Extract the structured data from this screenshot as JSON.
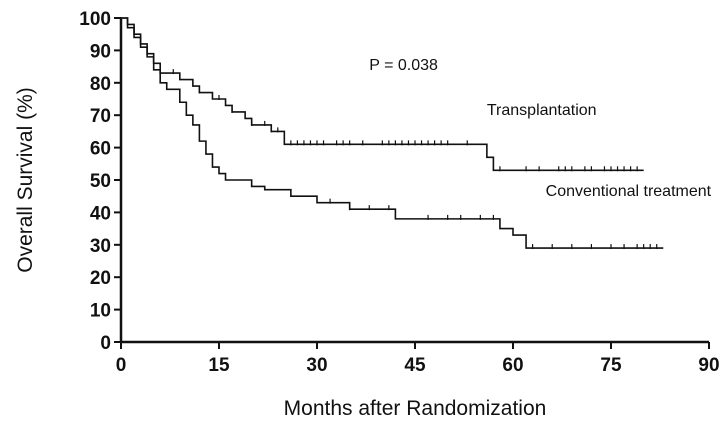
{
  "chart_data": {
    "type": "line",
    "xlabel": "Months after Randomization",
    "ylabel": "Overall Survival (%)",
    "xlim": [
      0,
      90
    ],
    "ylim": [
      0,
      100
    ],
    "xticks": [
      0,
      15,
      30,
      45,
      60,
      75,
      90
    ],
    "yticks": [
      0,
      10,
      20,
      30,
      40,
      50,
      60,
      70,
      80,
      90,
      100
    ],
    "grid": false,
    "annotations": [
      {
        "text": "P = 0.038",
        "x": 38,
        "y": 84
      },
      {
        "text": "Transplantation",
        "x": 56,
        "y": 70
      },
      {
        "text": "Conventional treatment",
        "x": 65,
        "y": 45
      }
    ],
    "series": [
      {
        "name": "Transplantation",
        "steps": [
          [
            0,
            100
          ],
          [
            1,
            98
          ],
          [
            2,
            95
          ],
          [
            3,
            92
          ],
          [
            4,
            89
          ],
          [
            5,
            86
          ],
          [
            6,
            83
          ],
          [
            9,
            81
          ],
          [
            11,
            79
          ],
          [
            12,
            77
          ],
          [
            14,
            75
          ],
          [
            16,
            73
          ],
          [
            17,
            71
          ],
          [
            19,
            69
          ],
          [
            20,
            67
          ],
          [
            23,
            65
          ],
          [
            25,
            61
          ],
          [
            56,
            61
          ],
          [
            56,
            57
          ],
          [
            57,
            53
          ],
          [
            80,
            53
          ]
        ],
        "censored": [
          8,
          12,
          15,
          17,
          20,
          22,
          23,
          24,
          26,
          27,
          28,
          29,
          30,
          31,
          33,
          34,
          35,
          37,
          40,
          41,
          42,
          43,
          44,
          45,
          46,
          47,
          48,
          49,
          50,
          53,
          58,
          62,
          64,
          67,
          68,
          69,
          71,
          72,
          74,
          75,
          76,
          77,
          78,
          79
        ]
      },
      {
        "name": "Conventional treatment",
        "steps": [
          [
            0,
            100
          ],
          [
            1,
            97
          ],
          [
            2,
            94
          ],
          [
            3,
            91
          ],
          [
            4,
            88
          ],
          [
            5,
            84
          ],
          [
            6,
            80
          ],
          [
            7,
            78
          ],
          [
            9,
            74
          ],
          [
            10,
            70
          ],
          [
            11,
            67
          ],
          [
            12,
            62
          ],
          [
            13,
            58
          ],
          [
            14,
            54
          ],
          [
            15,
            52
          ],
          [
            16,
            50
          ],
          [
            20,
            48
          ],
          [
            22,
            47
          ],
          [
            26,
            45
          ],
          [
            30,
            43
          ],
          [
            35,
            41
          ],
          [
            42,
            38
          ],
          [
            58,
            35
          ],
          [
            60,
            33
          ],
          [
            62,
            29
          ],
          [
            83,
            29
          ]
        ],
        "censored": [
          32,
          35,
          38,
          41,
          47,
          50,
          52,
          55,
          57,
          63,
          66,
          69,
          72,
          75,
          77,
          79,
          80,
          81,
          82
        ]
      }
    ]
  }
}
